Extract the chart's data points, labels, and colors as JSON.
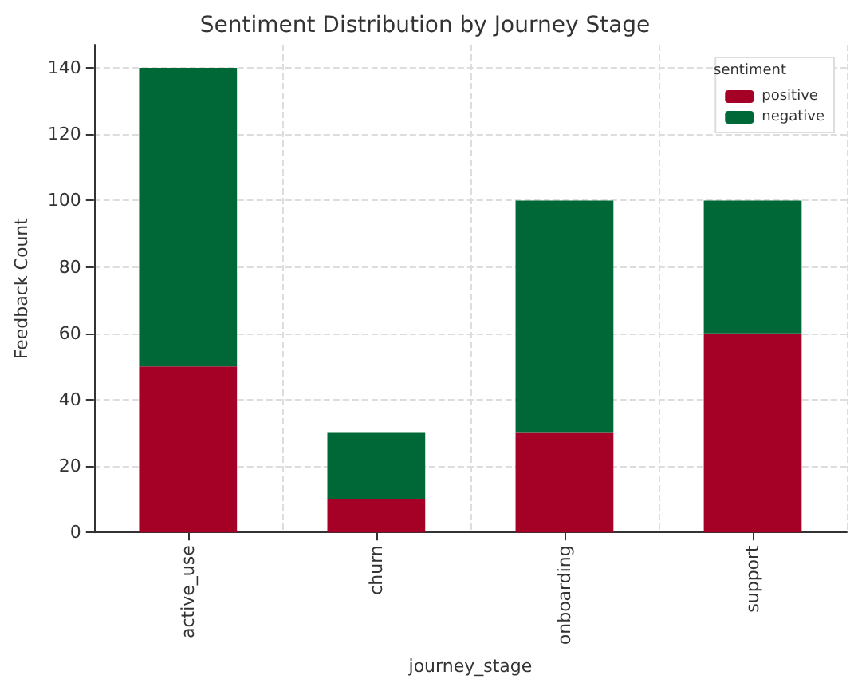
{
  "chart_data": {
    "type": "bar",
    "title": "Sentiment Distribution by Journey Stage",
    "xlabel": "journey_stage",
    "ylabel": "Feedback Count",
    "legend_title": "sentiment",
    "categories": [
      "active_use",
      "churn",
      "onboarding",
      "support"
    ],
    "series": [
      {
        "name": "positive",
        "color": "#a50026",
        "values": [
          50,
          10,
          30,
          60
        ]
      },
      {
        "name": "negative",
        "color": "#006837",
        "values": [
          90,
          20,
          70,
          40
        ]
      }
    ],
    "stacked": true,
    "ylim": [
      0,
      147
    ],
    "yticks": [
      0,
      20,
      40,
      60,
      80,
      100,
      120,
      140
    ],
    "grid": true,
    "legend": "top right"
  }
}
